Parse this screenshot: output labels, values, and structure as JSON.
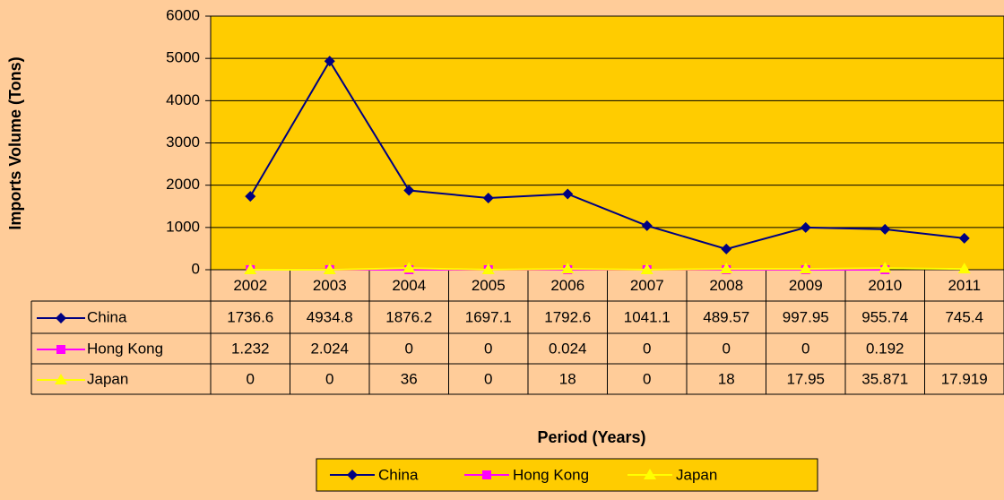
{
  "chart_data": {
    "type": "line",
    "categories": [
      "2002",
      "2003",
      "2004",
      "2005",
      "2006",
      "2007",
      "2008",
      "2009",
      "2010",
      "2011"
    ],
    "series": [
      {
        "name": "China",
        "color": "#000080",
        "marker": "diamond",
        "values": [
          1736.6,
          4934.8,
          1876.2,
          1697.1,
          1792.6,
          1041.1,
          489.57,
          997.95,
          955.74,
          745.4
        ]
      },
      {
        "name": "Hong Kong",
        "color": "#FF00FF",
        "marker": "square",
        "values": [
          1.232,
          2.024,
          0,
          0,
          0.024,
          0,
          0,
          0,
          0.192,
          null
        ]
      },
      {
        "name": "Japan",
        "color": "#FFFF00",
        "marker": "triangle",
        "values": [
          0,
          0,
          36,
          0,
          18,
          0,
          18,
          17.95,
          35.871,
          17.919
        ]
      }
    ],
    "y_label": "Imports Volume (Tons)",
    "x_label": "Period (Years)",
    "ylim": [
      0,
      6000
    ],
    "yticks": [
      0,
      1000,
      2000,
      3000,
      4000,
      5000,
      6000
    ],
    "grid": true,
    "plot_color": "#FFCC00",
    "legend": "bottom",
    "data_table": true
  }
}
